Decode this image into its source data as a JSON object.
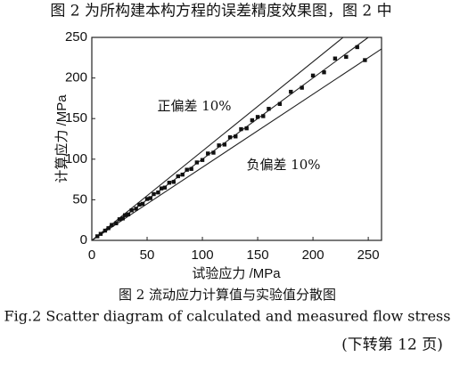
{
  "header": "图 2 为所构建本构方程的误差精度效果图，图 2 中",
  "chart_data": {
    "type": "scatter",
    "x_label": "试验应力 /MPa",
    "y_label": "计算应力 /MPa",
    "annotations": [
      "正偏差 10%",
      "负偏差 10%"
    ],
    "xlim": [
      0,
      262
    ],
    "ylim": [
      0,
      250
    ],
    "xticks": [
      0,
      50,
      100,
      150,
      200,
      250
    ],
    "yticks": [
      0,
      50,
      100,
      150,
      200,
      250
    ],
    "reference_slopes": [
      1.1,
      1.0,
      0.9
    ],
    "color": "#111111",
    "x": [
      5,
      8,
      12,
      15,
      18,
      22,
      25,
      28,
      30,
      33,
      36,
      40,
      43,
      46,
      50,
      53,
      56,
      60,
      63,
      66,
      70,
      74,
      78,
      82,
      86,
      90,
      95,
      100,
      105,
      110,
      115,
      120,
      125,
      130,
      135,
      140,
      145,
      150,
      155,
      160,
      170,
      180,
      190,
      200,
      210,
      220,
      230,
      240,
      247
    ],
    "values": [
      5,
      8,
      12,
      15,
      19,
      21,
      26,
      27,
      31,
      32,
      37,
      39,
      44,
      45,
      51,
      52,
      57,
      59,
      64,
      65,
      71,
      72,
      79,
      81,
      87,
      88,
      96,
      99,
      107,
      108,
      117,
      118,
      127,
      128,
      137,
      138,
      148,
      152,
      153,
      162,
      168,
      183,
      188,
      203,
      207,
      224,
      226,
      238,
      222
    ]
  },
  "caption_cn": "图 2  流动应力计算值与实验值分散图",
  "caption_en": "Fig.2  Scatter diagram of calculated and measured flow stress",
  "footer": "(下转第 12 页)"
}
